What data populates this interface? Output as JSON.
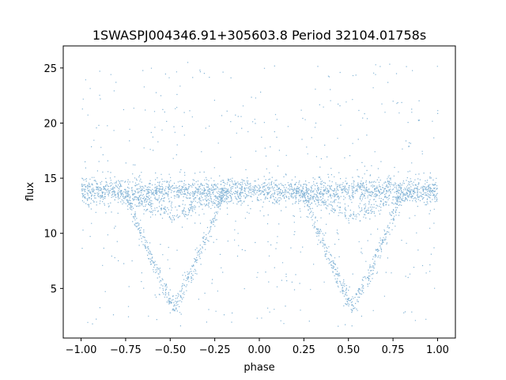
{
  "chart_data": {
    "type": "scatter",
    "title": "1SWASPJ004346.91+305603.8 Period 32104.01758s",
    "xlabel": "phase",
    "ylabel": "flux",
    "xlim": [
      -1.1,
      1.1
    ],
    "ylim": [
      0.5,
      27.0
    ],
    "x_ticks": [
      -1.0,
      -0.75,
      -0.5,
      -0.25,
      0.0,
      0.25,
      0.5,
      0.75,
      1.0
    ],
    "x_tick_labels": [
      "−1.00",
      "−0.75",
      "−0.50",
      "−0.25",
      "0.00",
      "0.25",
      "0.50",
      "0.75",
      "1.00"
    ],
    "y_ticks": [
      5,
      10,
      15,
      20,
      25
    ],
    "y_tick_labels": [
      "5",
      "10",
      "15",
      "20",
      "25"
    ],
    "grid": false,
    "marker_color": "#1f77b4",
    "series": [
      {
        "description_points": "folded light curve; baseline ~13.8 flux with scatter 12.5-15.5, deep eclipse to ~3.5 at phase -0.48 and 0.52, secondary track to ~11.5 near eclipse phases",
        "points_x": [
          -1.0,
          -0.9,
          -0.8,
          -0.7,
          -0.6,
          -0.55,
          -0.5,
          -0.48,
          -0.45,
          -0.4,
          -0.35,
          -0.3,
          -0.25,
          -0.2,
          -0.1,
          0.0,
          0.1,
          0.2,
          0.3,
          0.35,
          0.4,
          0.45,
          0.5,
          0.52,
          0.55,
          0.6,
          0.65,
          0.7,
          0.75,
          0.8,
          0.9,
          1.0
        ],
        "points_y": [
          13.8,
          13.8,
          13.7,
          12.2,
          8.5,
          6.2,
          4.2,
          3.5,
          4.0,
          5.6,
          7.5,
          9.6,
          11.5,
          12.8,
          13.6,
          13.8,
          13.8,
          13.7,
          12.2,
          10.5,
          8.5,
          6.0,
          4.0,
          3.5,
          4.0,
          5.6,
          7.5,
          9.6,
          11.5,
          12.8,
          13.6,
          13.8
        ]
      }
    ]
  }
}
